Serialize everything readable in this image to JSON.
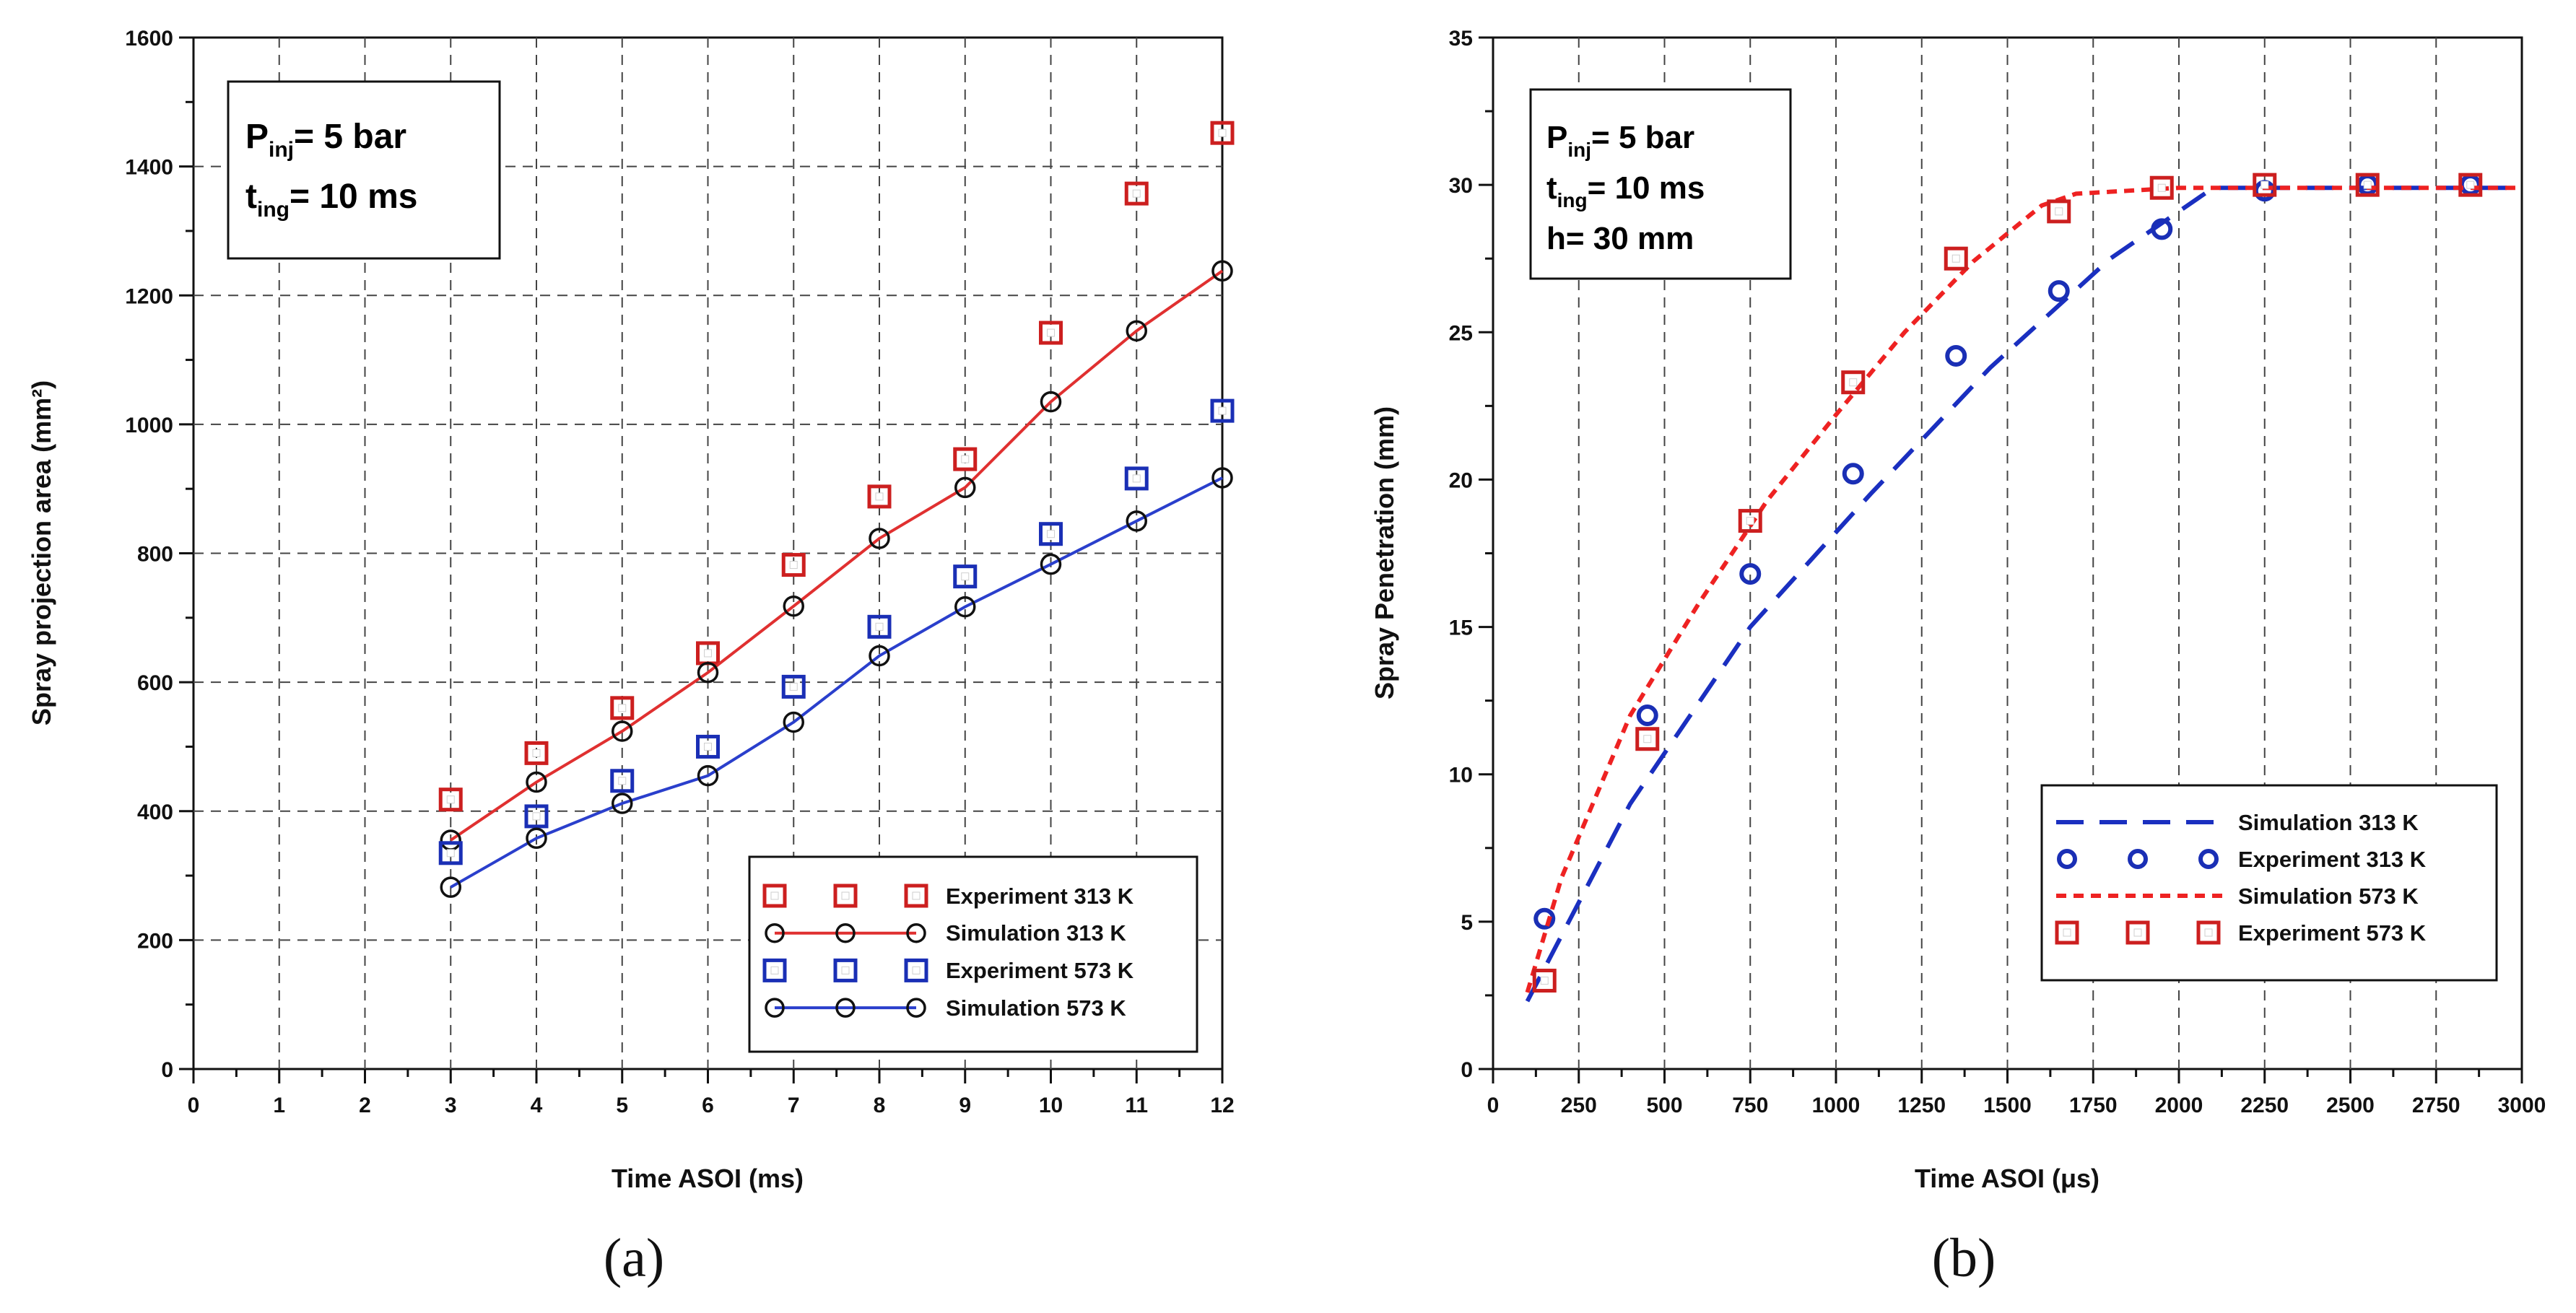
{
  "chart_data": [
    {
      "type": "line",
      "panel": "(a)",
      "xlabel": "Time ASOI (ms)",
      "ylabel": "Spray projection area (mm²)",
      "xlim": [
        0,
        12
      ],
      "ylim": [
        0,
        1600
      ],
      "xticks": [
        0,
        1,
        2,
        3,
        4,
        5,
        6,
        7,
        8,
        9,
        10,
        11,
        12
      ],
      "yticks": [
        0,
        200,
        400,
        600,
        800,
        1000,
        1200,
        1400,
        1600
      ],
      "grid": true,
      "annotation": {
        "line1_main": "P",
        "line1_sub": "inj",
        "line1_rest": "= 5 bar",
        "line2_main": "t",
        "line2_sub": "ing",
        "line2_rest": "= 10 ms"
      },
      "legend_position": "bottom-right",
      "series": [
        {
          "name": "Experiment 313 K",
          "style": "square-marker",
          "color": "#cc1f1f",
          "x": [
            3,
            4,
            5,
            6,
            7,
            8,
            9,
            10,
            11,
            12
          ],
          "values": [
            418,
            490,
            560,
            645,
            782,
            888,
            946,
            1142,
            1358,
            1452
          ]
        },
        {
          "name": "Simulation 313 K",
          "style": "line-circle",
          "color": "#e03030",
          "x": [
            3,
            4,
            5,
            6,
            7,
            8,
            9,
            10,
            11,
            12
          ],
          "values": [
            355,
            445,
            524,
            615,
            718,
            823,
            902,
            1035,
            1145,
            1238
          ]
        },
        {
          "name": "Experiment 573 K",
          "style": "square-marker",
          "color": "#1a2fb5",
          "x": [
            3,
            4,
            5,
            6,
            7,
            8,
            9,
            10,
            11,
            12
          ],
          "values": [
            335,
            392,
            447,
            500,
            593,
            686,
            764,
            830,
            916,
            1021
          ]
        },
        {
          "name": "Simulation 573 K",
          "style": "line-circle",
          "color": "#2a3fcc",
          "x": [
            3,
            4,
            5,
            6,
            7,
            8,
            9,
            10,
            11,
            12
          ],
          "values": [
            282,
            358,
            412,
            455,
            538,
            641,
            717,
            783,
            850,
            917
          ]
        }
      ]
    },
    {
      "type": "line",
      "panel": "(b)",
      "xlabel": "Time ASOI (μs)",
      "ylabel": "Spray Penetration (mm)",
      "xlim": [
        0,
        3000
      ],
      "ylim": [
        0,
        35
      ],
      "xticks": [
        0,
        250,
        500,
        750,
        1000,
        1250,
        1500,
        1750,
        2000,
        2250,
        2500,
        2750,
        3000
      ],
      "yticks": [
        0,
        5,
        10,
        15,
        20,
        25,
        30,
        35
      ],
      "grid": true,
      "annotation": {
        "line1_main": "P",
        "line1_sub": "inj",
        "line1_rest": "= 5 bar",
        "line2_main": "t",
        "line2_sub": "ing",
        "line2_rest": "= 10 ms",
        "line3": "h= 30 mm"
      },
      "legend_position": "bottom-right",
      "series": [
        {
          "name": "Simulation 313 K",
          "style": "long-dash",
          "color": "#1a2fc0",
          "x": [
            100,
            400,
            750,
            1100,
            1450,
            1800,
            2100,
            2250,
            3000
          ],
          "values": [
            2.3,
            9.0,
            15.0,
            19.5,
            23.8,
            27.5,
            29.9,
            29.9,
            29.9
          ]
        },
        {
          "name": "Experiment 313 K",
          "style": "circle-marker",
          "color": "#1a2fb5",
          "x": [
            150,
            450,
            750,
            1050,
            1350,
            1650,
            1950,
            2250,
            2550,
            2850
          ],
          "values": [
            5.1,
            12.0,
            16.8,
            20.2,
            24.2,
            26.4,
            28.5,
            29.8,
            30.0,
            30.0
          ]
        },
        {
          "name": "Simulation 573 K",
          "style": "short-dash",
          "color": "#ee2222",
          "x": [
            100,
            200,
            400,
            600,
            800,
            1000,
            1200,
            1400,
            1600,
            1700,
            1850,
            2000,
            3000
          ],
          "values": [
            2.6,
            6.5,
            12.0,
            15.8,
            19.3,
            22.2,
            25.0,
            27.4,
            29.3,
            29.7,
            29.8,
            29.9,
            29.9
          ]
        },
        {
          "name": "Experiment 573 K",
          "style": "square-marker",
          "color": "#cc1f1f",
          "x": [
            150,
            450,
            750,
            1050,
            1350,
            1650,
            1950,
            2250,
            2550,
            2850
          ],
          "values": [
            3.0,
            11.2,
            18.6,
            23.3,
            27.5,
            29.1,
            29.9,
            30.0,
            30.0,
            30.0
          ]
        }
      ]
    }
  ],
  "captions": [
    "(a)",
    "(b)"
  ]
}
